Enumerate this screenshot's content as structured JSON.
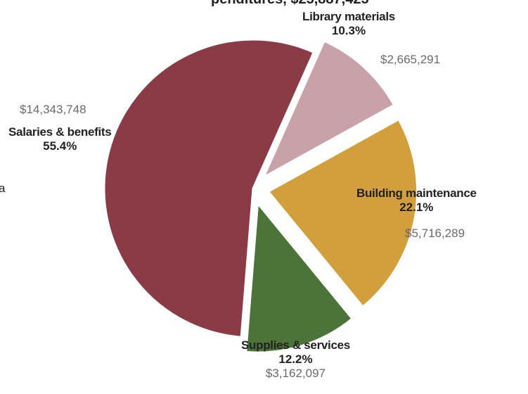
{
  "chart_data": {
    "type": "pie",
    "title": "",
    "slices": [
      {
        "label": "Library materials",
        "percent": "10.3%",
        "amount": "$2,665,291",
        "value": 10.3,
        "color": "#c9a2a9",
        "exploded": true
      },
      {
        "label": "Building maintenance",
        "percent": "22.1%",
        "amount": "$5,716,289",
        "value": 22.1,
        "color": "#d29f3c",
        "exploded": true
      },
      {
        "label": "Supplies & services",
        "percent": "12.2%",
        "amount": "$3,162,097",
        "value": 12.2,
        "color": "#4c7338",
        "exploded": true
      },
      {
        "label": "Salaries & benefits",
        "percent": "55.4%",
        "amount": "$14,343,748",
        "value": 55.4,
        "color": "#8b3b45",
        "exploded": false
      }
    ]
  },
  "fragments": {
    "top_cut": "penditures, $25,887,425",
    "left_cut": "a"
  }
}
